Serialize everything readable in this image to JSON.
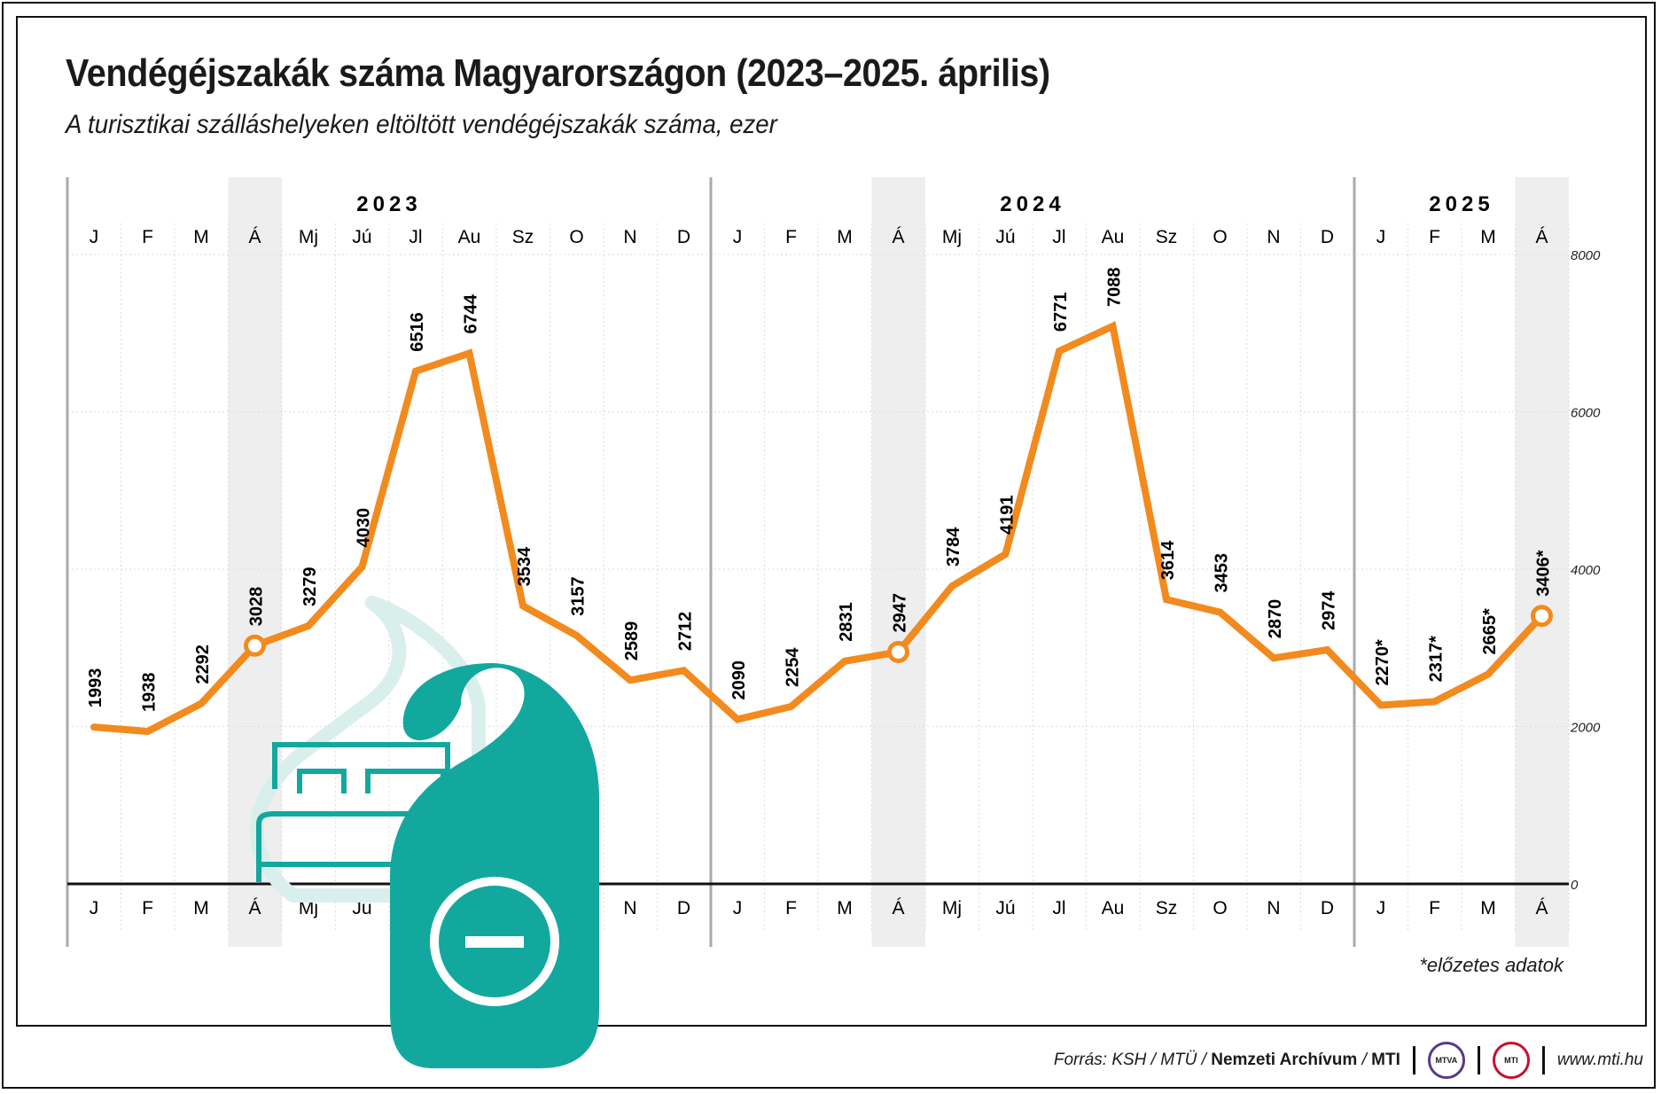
{
  "title": "Vendégéjszakák száma Magyarországon (2023–2025. április)",
  "subtitle": "A turisztikai szálláshelyeken eltöltött vendégéjszakák száma, ezer",
  "note": "*előzetes adatok",
  "footer": {
    "source_prefix": "Forrás: KSH / MTÜ / ",
    "source_bold": "Nemzeti Archívum",
    "source_sep": " / ",
    "source_bold2": "MTI",
    "logo1": "MTVA",
    "logo2": "MTI",
    "url": "www.mti.hu"
  },
  "colors": {
    "line": "#f28a1e",
    "icon": "#13a89e",
    "icon_light": "#d9efec",
    "shade": "#eeeeee",
    "axis": "#111111"
  },
  "icon": "door-hanger-do-not-disturb-icon",
  "chart_data": {
    "type": "line",
    "years": [
      {
        "label": "2023",
        "count": 12
      },
      {
        "label": "2024",
        "count": 12
      },
      {
        "label": "2025",
        "count": 4
      }
    ],
    "months": [
      "J",
      "F",
      "M",
      "Á",
      "Mj",
      "Jú",
      "Jl",
      "Au",
      "Sz",
      "O",
      "N",
      "D",
      "J",
      "F",
      "M",
      "Á",
      "Mj",
      "Jú",
      "Jl",
      "Au",
      "Sz",
      "O",
      "N",
      "D",
      "J",
      "F",
      "M",
      "Á"
    ],
    "values": [
      1993,
      1938,
      2292,
      3028,
      3279,
      4030,
      6516,
      6744,
      3534,
      3157,
      2589,
      2712,
      2090,
      2254,
      2831,
      2947,
      3784,
      4191,
      6771,
      7088,
      3614,
      3453,
      2870,
      2974,
      2270,
      2317,
      2665,
      3406
    ],
    "labels": [
      "1993",
      "1938",
      "2292",
      "3028",
      "3279",
      "4030",
      "6516",
      "6744",
      "3534",
      "3157",
      "2589",
      "2712",
      "2090",
      "2254",
      "2831",
      "2947",
      "3784",
      "4191",
      "6771",
      "7088",
      "3614",
      "3453",
      "2870",
      "2974",
      "2270*",
      "2317*",
      "2665*",
      "3406*"
    ],
    "highlighted": [
      3,
      15,
      27
    ],
    "yticks": [
      "0",
      "2000",
      "4000",
      "6000",
      "8000"
    ],
    "ylim": [
      0,
      8000
    ],
    "grid": true
  }
}
